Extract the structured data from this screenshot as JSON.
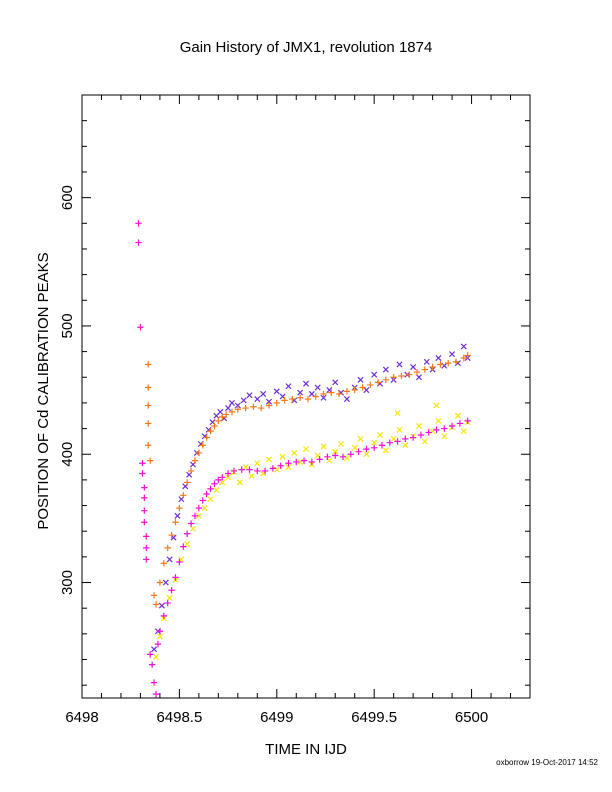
{
  "chart_data": {
    "type": "scatter",
    "title": "Gain History of JMX1, revolution 1874",
    "xlabel": "TIME IN IJD",
    "ylabel": "POSITION OF Cd CALIBRATION PEAKS",
    "xlim": [
      6498.0,
      6500.3
    ],
    "ylim": [
      210,
      680
    ],
    "xticks": [
      6498,
      6498.5,
      6499,
      6499.5,
      6500
    ],
    "xtick_labels": [
      "6498",
      "6498.5",
      "6499",
      "6499.5",
      "6500"
    ],
    "yticks": [
      300,
      400,
      500,
      600
    ],
    "ytick_labels": [
      "300",
      "400",
      "500",
      "600"
    ],
    "grid": false,
    "legend": "none",
    "series": [
      {
        "marker": "x",
        "color": "#6b2fd6",
        "points": [
          [
            6498.37,
            248
          ],
          [
            6498.39,
            262
          ],
          [
            6498.41,
            282
          ],
          [
            6498.43,
            300
          ],
          [
            6498.45,
            318
          ],
          [
            6498.47,
            335
          ],
          [
            6498.49,
            352
          ],
          [
            6498.51,
            365
          ],
          [
            6498.53,
            375
          ],
          [
            6498.55,
            384
          ],
          [
            6498.57,
            392
          ],
          [
            6498.59,
            401
          ],
          [
            6498.61,
            408
          ],
          [
            6498.63,
            414
          ],
          [
            6498.65,
            419
          ],
          [
            6498.67,
            425
          ],
          [
            6498.69,
            430
          ],
          [
            6498.71,
            433
          ],
          [
            6498.73,
            428
          ],
          [
            6498.75,
            436
          ],
          [
            6498.77,
            440
          ],
          [
            6498.8,
            438
          ],
          [
            6498.83,
            442
          ],
          [
            6498.86,
            446
          ],
          [
            6498.9,
            443
          ],
          [
            6498.93,
            447
          ],
          [
            6498.96,
            441
          ],
          [
            6499.0,
            449
          ],
          [
            6499.03,
            445
          ],
          [
            6499.06,
            453
          ],
          [
            6499.09,
            442
          ],
          [
            6499.12,
            448
          ],
          [
            6499.15,
            455
          ],
          [
            6499.18,
            447
          ],
          [
            6499.21,
            452
          ],
          [
            6499.24,
            444
          ],
          [
            6499.27,
            450
          ],
          [
            6499.3,
            456
          ],
          [
            6499.33,
            448
          ],
          [
            6499.36,
            443
          ],
          [
            6499.4,
            452
          ],
          [
            6499.43,
            458
          ],
          [
            6499.46,
            450
          ],
          [
            6499.5,
            462
          ],
          [
            6499.53,
            455
          ],
          [
            6499.56,
            466
          ],
          [
            6499.6,
            458
          ],
          [
            6499.63,
            470
          ],
          [
            6499.67,
            462
          ],
          [
            6499.7,
            468
          ],
          [
            6499.73,
            460
          ],
          [
            6499.77,
            472
          ],
          [
            6499.8,
            466
          ],
          [
            6499.83,
            475
          ],
          [
            6499.86,
            469
          ],
          [
            6499.9,
            478
          ],
          [
            6499.93,
            471
          ],
          [
            6499.96,
            484
          ],
          [
            6499.98,
            475
          ]
        ]
      },
      {
        "marker": "+",
        "color": "#f27a1a",
        "points": [
          [
            6498.34,
            470
          ],
          [
            6498.34,
            452
          ],
          [
            6498.34,
            438
          ],
          [
            6498.34,
            424
          ],
          [
            6498.34,
            407
          ],
          [
            6498.35,
            395
          ],
          [
            6498.37,
            290
          ],
          [
            6498.38,
            283
          ],
          [
            6498.4,
            300
          ],
          [
            6498.42,
            315
          ],
          [
            6498.44,
            327
          ],
          [
            6498.46,
            337
          ],
          [
            6498.48,
            347
          ],
          [
            6498.5,
            358
          ],
          [
            6498.52,
            368
          ],
          [
            6498.54,
            378
          ],
          [
            6498.56,
            387
          ],
          [
            6498.58,
            395
          ],
          [
            6498.6,
            401
          ],
          [
            6498.62,
            407
          ],
          [
            6498.64,
            413
          ],
          [
            6498.66,
            418
          ],
          [
            6498.68,
            422
          ],
          [
            6498.7,
            426
          ],
          [
            6498.72,
            429
          ],
          [
            6498.74,
            431
          ],
          [
            6498.77,
            433
          ],
          [
            6498.8,
            435
          ],
          [
            6498.84,
            436
          ],
          [
            6498.88,
            437
          ],
          [
            6498.92,
            436
          ],
          [
            6498.96,
            438
          ],
          [
            6499.0,
            440
          ],
          [
            6499.04,
            442
          ],
          [
            6499.08,
            443
          ],
          [
            6499.12,
            444
          ],
          [
            6499.16,
            443
          ],
          [
            6499.2,
            445
          ],
          [
            6499.24,
            447
          ],
          [
            6499.28,
            448
          ],
          [
            6499.32,
            447
          ],
          [
            6499.36,
            449
          ],
          [
            6499.4,
            450
          ],
          [
            6499.44,
            452
          ],
          [
            6499.48,
            454
          ],
          [
            6499.52,
            456
          ],
          [
            6499.56,
            458
          ],
          [
            6499.6,
            460
          ],
          [
            6499.64,
            461
          ],
          [
            6499.68,
            462
          ],
          [
            6499.72,
            464
          ],
          [
            6499.76,
            466
          ],
          [
            6499.8,
            468
          ],
          [
            6499.84,
            470
          ],
          [
            6499.88,
            471
          ],
          [
            6499.92,
            472
          ],
          [
            6499.96,
            475
          ],
          [
            6499.98,
            477
          ]
        ]
      },
      {
        "marker": "x",
        "color": "#f5e60a",
        "points": [
          [
            6498.38,
            242
          ],
          [
            6498.4,
            258
          ],
          [
            6498.42,
            272
          ],
          [
            6498.45,
            288
          ],
          [
            6498.48,
            302
          ],
          [
            6498.51,
            318
          ],
          [
            6498.54,
            330
          ],
          [
            6498.57,
            342
          ],
          [
            6498.6,
            352
          ],
          [
            6498.63,
            358
          ],
          [
            6498.66,
            365
          ],
          [
            6498.69,
            372
          ],
          [
            6498.72,
            378
          ],
          [
            6498.75,
            382
          ],
          [
            6498.78,
            386
          ],
          [
            6498.81,
            378
          ],
          [
            6498.84,
            390
          ],
          [
            6498.87,
            383
          ],
          [
            6498.9,
            393
          ],
          [
            6498.93,
            385
          ],
          [
            6498.96,
            396
          ],
          [
            6499.0,
            388
          ],
          [
            6499.03,
            398
          ],
          [
            6499.06,
            390
          ],
          [
            6499.09,
            401
          ],
          [
            6499.12,
            394
          ],
          [
            6499.15,
            404
          ],
          [
            6499.18,
            392
          ],
          [
            6499.21,
            399
          ],
          [
            6499.24,
            406
          ],
          [
            6499.27,
            395
          ],
          [
            6499.3,
            402
          ],
          [
            6499.33,
            408
          ],
          [
            6499.36,
            397
          ],
          [
            6499.4,
            405
          ],
          [
            6499.43,
            412
          ],
          [
            6499.46,
            400
          ],
          [
            6499.5,
            409
          ],
          [
            6499.53,
            415
          ],
          [
            6499.56,
            403
          ],
          [
            6499.6,
            412
          ],
          [
            6499.63,
            419
          ],
          [
            6499.66,
            407
          ],
          [
            6499.7,
            414
          ],
          [
            6499.73,
            422
          ],
          [
            6499.76,
            410
          ],
          [
            6499.8,
            418
          ],
          [
            6499.83,
            426
          ],
          [
            6499.86,
            414
          ],
          [
            6499.9,
            421
          ],
          [
            6499.93,
            430
          ],
          [
            6499.96,
            418
          ],
          [
            6499.98,
            425
          ],
          [
            6499.82,
            438
          ],
          [
            6499.62,
            432
          ]
        ]
      },
      {
        "marker": "+",
        "color": "#ee11d8",
        "points": [
          [
            6498.29,
            580
          ],
          [
            6498.29,
            565
          ],
          [
            6498.3,
            499
          ],
          [
            6498.31,
            393
          ],
          [
            6498.31,
            385
          ],
          [
            6498.32,
            374
          ],
          [
            6498.32,
            366
          ],
          [
            6498.32,
            356
          ],
          [
            6498.32,
            347
          ],
          [
            6498.33,
            336
          ],
          [
            6498.33,
            327
          ],
          [
            6498.33,
            318
          ],
          [
            6498.35,
            244
          ],
          [
            6498.36,
            236
          ],
          [
            6498.37,
            222
          ],
          [
            6498.38,
            213
          ],
          [
            6498.39,
            252
          ],
          [
            6498.4,
            262
          ],
          [
            6498.42,
            274
          ],
          [
            6498.44,
            284
          ],
          [
            6498.46,
            294
          ],
          [
            6498.48,
            304
          ],
          [
            6498.5,
            316
          ],
          [
            6498.52,
            328
          ],
          [
            6498.54,
            338
          ],
          [
            6498.56,
            346
          ],
          [
            6498.58,
            352
          ],
          [
            6498.6,
            358
          ],
          [
            6498.62,
            364
          ],
          [
            6498.64,
            369
          ],
          [
            6498.66,
            373
          ],
          [
            6498.68,
            377
          ],
          [
            6498.7,
            380
          ],
          [
            6498.72,
            382
          ],
          [
            6498.75,
            385
          ],
          [
            6498.78,
            387
          ],
          [
            6498.82,
            388
          ],
          [
            6498.86,
            388
          ],
          [
            6498.9,
            387
          ],
          [
            6498.94,
            387
          ],
          [
            6498.98,
            389
          ],
          [
            6499.02,
            391
          ],
          [
            6499.06,
            393
          ],
          [
            6499.1,
            394
          ],
          [
            6499.14,
            395
          ],
          [
            6499.18,
            394
          ],
          [
            6499.22,
            396
          ],
          [
            6499.26,
            398
          ],
          [
            6499.3,
            399
          ],
          [
            6499.34,
            398
          ],
          [
            6499.38,
            400
          ],
          [
            6499.42,
            402
          ],
          [
            6499.46,
            404
          ],
          [
            6499.5,
            405
          ],
          [
            6499.54,
            407
          ],
          [
            6499.58,
            409
          ],
          [
            6499.62,
            410
          ],
          [
            6499.66,
            412
          ],
          [
            6499.7,
            413
          ],
          [
            6499.74,
            415
          ],
          [
            6499.78,
            417
          ],
          [
            6499.82,
            419
          ],
          [
            6499.86,
            420
          ],
          [
            6499.9,
            422
          ],
          [
            6499.94,
            424
          ],
          [
            6499.98,
            426
          ]
        ]
      }
    ]
  },
  "footer": {
    "credit": "oxborrow 19-Oct-2017 14:52"
  }
}
